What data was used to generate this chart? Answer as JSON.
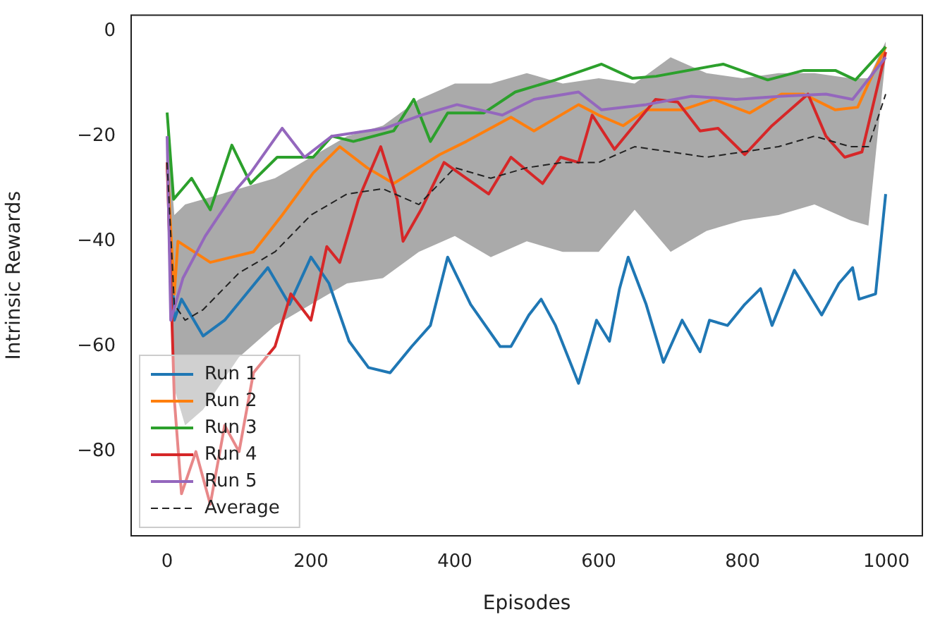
{
  "chart_data": {
    "type": "line",
    "xlabel": "Episodes",
    "ylabel": "Intrinsic Rewards",
    "xlim": [
      -50,
      1050
    ],
    "ylim": [
      -96,
      3
    ],
    "xticks": [
      0,
      200,
      400,
      600,
      800,
      1000
    ],
    "yticks": [
      -80,
      -60,
      -40,
      -20,
      0
    ],
    "grid": false,
    "legend": "bottom left",
    "marker": "none",
    "series": [
      {
        "name": "Run 1",
        "color": "#1f77b4",
        "x": [
          0,
          10,
          20,
          50,
          80,
          110,
          140,
          170,
          200,
          225,
          253,
          280,
          310,
          340,
          366,
          390,
          422,
          463,
          478,
          503,
          520,
          540,
          572,
          597,
          615,
          629,
          641,
          666,
          690,
          716,
          741,
          754,
          779,
          803,
          825,
          841,
          872,
          910,
          934,
          953,
          962,
          985,
          999
        ],
        "values": [
          -25,
          -55,
          -51,
          -58,
          -55,
          -50,
          -45,
          -52,
          -43,
          -48,
          -59,
          -64,
          -65,
          -60,
          -56,
          -43,
          -52,
          -60,
          -60,
          -54,
          -51,
          -56,
          -67,
          -55,
          -59,
          -49,
          -43,
          -52,
          -63,
          -55,
          -61,
          -55,
          -56,
          -52,
          -49,
          -56,
          -45.5,
          -54,
          -48,
          -45,
          -51,
          -50,
          -31
        ]
      },
      {
        "name": "Run 2",
        "color": "#ff7f0e",
        "x": [
          0,
          10,
          15,
          60,
          120,
          160,
          203,
          240,
          278,
          315,
          379,
          416,
          478,
          510,
          572,
          600,
          634,
          666,
          716,
          760,
          810,
          854,
          885,
          929,
          960,
          975,
          999
        ],
        "values": [
          -25,
          -50,
          -40,
          -44,
          -42,
          -35,
          -27,
          -22,
          -26,
          -29,
          -23.5,
          -21,
          -16.4,
          -19,
          -14,
          -16,
          -18,
          -15,
          -15,
          -13,
          -15.6,
          -12,
          -12,
          -15,
          -14.5,
          -10,
          -3
        ]
      },
      {
        "name": "Run 3",
        "color": "#2ca02c",
        "x": [
          0,
          9,
          34,
          60,
          90,
          116,
          153,
          203,
          229,
          259,
          315,
          343,
          366,
          390,
          440,
          484,
          540,
          604,
          647,
          680,
          773,
          835,
          885,
          929,
          957,
          999
        ],
        "values": [
          -15.5,
          -32,
          -28,
          -34,
          -21.7,
          -29,
          -24,
          -24,
          -20,
          -21,
          -19,
          -13,
          -21,
          -15.6,
          -15.6,
          -11.6,
          -9.3,
          -6.3,
          -9,
          -8.6,
          -6.3,
          -9.3,
          -7.5,
          -7.5,
          -9.3,
          -3
        ]
      },
      {
        "name": "Run 4",
        "color": "#d62728",
        "x": [
          0,
          10,
          20,
          40,
          60,
          80,
          100,
          120,
          150,
          172,
          200,
          222,
          240,
          266,
          297,
          320,
          328,
          353,
          385,
          416,
          447,
          478,
          522,
          547,
          572,
          591,
          622,
          679,
          710,
          741,
          766,
          803,
          841,
          891,
          916,
          942,
          966,
          999
        ],
        "values": [
          -25,
          -70,
          -88,
          -80,
          -90,
          -75,
          -80,
          -65,
          -60,
          -50,
          -55,
          -41,
          -44,
          -32,
          -22,
          -32,
          -40,
          -34,
          -25,
          -28,
          -31,
          -24,
          -29,
          -24,
          -25,
          -16,
          -22.5,
          -13,
          -13.5,
          -19,
          -18.5,
          -23.5,
          -18,
          -12,
          -20,
          -24,
          -23,
          -4
        ]
      },
      {
        "name": "Run 5",
        "color": "#9467bd",
        "x": [
          0,
          5,
          22,
          53,
          97,
          116,
          160,
          191,
          229,
          303,
          353,
          403,
          466,
          510,
          572,
          604,
          666,
          729,
          791,
          854,
          916,
          953,
          999
        ],
        "values": [
          -20,
          -55,
          -47,
          -39,
          -30,
          -27,
          -18.5,
          -24,
          -20,
          -18.5,
          -16,
          -14,
          -16,
          -13,
          -11.6,
          -15,
          -14,
          -12.4,
          -13,
          -12.4,
          -12,
          -13,
          -5
        ]
      },
      {
        "name": "Average",
        "color": "#222222",
        "line_style": "dashed",
        "x": [
          0,
          10,
          25,
          50,
          100,
          150,
          200,
          250,
          300,
          350,
          400,
          450,
          500,
          550,
          600,
          650,
          700,
          750,
          800,
          850,
          900,
          950,
          975,
          999
        ],
        "values": [
          -25,
          -52,
          -55,
          -53,
          -46,
          -42,
          -35,
          -31,
          -30,
          -33,
          -26,
          -28,
          -26,
          -25,
          -25,
          -22,
          -23,
          -24,
          -23,
          -22,
          -20,
          -22,
          -22,
          -12
        ],
        "upper": [
          -18,
          -35,
          -33,
          -32,
          -30,
          -28,
          -24,
          -20,
          -18,
          -13,
          -10,
          -10,
          -8,
          -10,
          -9,
          -10,
          -5,
          -8,
          -9,
          -8,
          -8,
          -9,
          -9,
          -2
        ],
        "lower": [
          -32,
          -68,
          -75,
          -72,
          -62,
          -56,
          -52,
          -48,
          -47,
          -42,
          -39,
          -43,
          -40,
          -42,
          -42,
          -34,
          -42,
          -38,
          -36,
          -35,
          -33,
          -36,
          -37,
          -5
        ]
      }
    ]
  }
}
